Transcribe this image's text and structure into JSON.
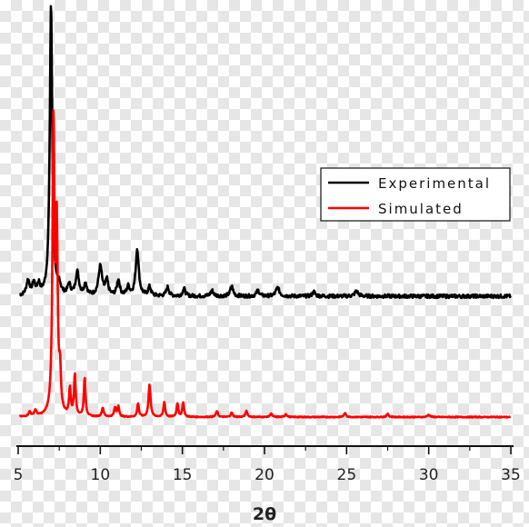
{
  "chart_data": {
    "type": "line",
    "title": "",
    "xlabel": "2θ",
    "ylabel": "",
    "xlim": [
      5,
      35
    ],
    "xticks": [
      "5",
      "10",
      "15",
      "20",
      "25",
      "30",
      "35"
    ],
    "grid": false,
    "legend_position": "top-right",
    "series": [
      {
        "name": "Experimental",
        "color": "#000000",
        "baseline": 0.02,
        "noise": 0.012,
        "peaks": [
          {
            "x": 5.6,
            "h": 0.05,
            "w": 0.12
          },
          {
            "x": 5.95,
            "h": 0.04,
            "w": 0.1
          },
          {
            "x": 6.25,
            "h": 0.035,
            "w": 0.1
          },
          {
            "x": 7.0,
            "h": 1.0,
            "w": 0.09
          },
          {
            "x": 7.5,
            "h": 0.03,
            "w": 0.1
          },
          {
            "x": 8.1,
            "h": 0.035,
            "w": 0.1
          },
          {
            "x": 8.6,
            "h": 0.08,
            "w": 0.12
          },
          {
            "x": 9.1,
            "h": 0.04,
            "w": 0.1
          },
          {
            "x": 10.0,
            "h": 0.1,
            "w": 0.13
          },
          {
            "x": 10.4,
            "h": 0.05,
            "w": 0.1
          },
          {
            "x": 11.1,
            "h": 0.055,
            "w": 0.1
          },
          {
            "x": 11.7,
            "h": 0.03,
            "w": 0.1
          },
          {
            "x": 12.25,
            "h": 0.16,
            "w": 0.11
          },
          {
            "x": 13.0,
            "h": 0.03,
            "w": 0.1
          },
          {
            "x": 14.1,
            "h": 0.03,
            "w": 0.1
          },
          {
            "x": 15.1,
            "h": 0.025,
            "w": 0.1
          },
          {
            "x": 16.8,
            "h": 0.02,
            "w": 0.1
          },
          {
            "x": 18.0,
            "h": 0.035,
            "w": 0.1
          },
          {
            "x": 19.6,
            "h": 0.02,
            "w": 0.1
          },
          {
            "x": 20.8,
            "h": 0.03,
            "w": 0.12
          },
          {
            "x": 23.0,
            "h": 0.015,
            "w": 0.1
          },
          {
            "x": 25.6,
            "h": 0.018,
            "w": 0.12
          }
        ]
      },
      {
        "name": "Simulated",
        "color": "#ff0000",
        "baseline": 0.0,
        "noise": 0.003,
        "peaks": [
          {
            "x": 5.7,
            "h": 0.015,
            "w": 0.08
          },
          {
            "x": 6.05,
            "h": 0.02,
            "w": 0.08
          },
          {
            "x": 7.15,
            "h": 0.98,
            "w": 0.07
          },
          {
            "x": 7.35,
            "h": 0.6,
            "w": 0.07
          },
          {
            "x": 7.55,
            "h": 0.12,
            "w": 0.06
          },
          {
            "x": 8.15,
            "h": 0.09,
            "w": 0.06
          },
          {
            "x": 8.45,
            "h": 0.14,
            "w": 0.06
          },
          {
            "x": 9.05,
            "h": 0.13,
            "w": 0.06
          },
          {
            "x": 10.15,
            "h": 0.03,
            "w": 0.07
          },
          {
            "x": 10.9,
            "h": 0.03,
            "w": 0.07
          },
          {
            "x": 11.1,
            "h": 0.035,
            "w": 0.06
          },
          {
            "x": 12.3,
            "h": 0.045,
            "w": 0.06
          },
          {
            "x": 13.0,
            "h": 0.11,
            "w": 0.07
          },
          {
            "x": 13.9,
            "h": 0.05,
            "w": 0.06
          },
          {
            "x": 14.7,
            "h": 0.045,
            "w": 0.06
          },
          {
            "x": 15.05,
            "h": 0.05,
            "w": 0.06
          },
          {
            "x": 17.1,
            "h": 0.02,
            "w": 0.07
          },
          {
            "x": 18.0,
            "h": 0.015,
            "w": 0.07
          },
          {
            "x": 18.9,
            "h": 0.02,
            "w": 0.07
          },
          {
            "x": 20.4,
            "h": 0.012,
            "w": 0.07
          },
          {
            "x": 21.3,
            "h": 0.01,
            "w": 0.07
          },
          {
            "x": 24.9,
            "h": 0.012,
            "w": 0.08
          },
          {
            "x": 27.5,
            "h": 0.01,
            "w": 0.08
          },
          {
            "x": 30.0,
            "h": 0.008,
            "w": 0.08
          }
        ]
      }
    ]
  }
}
